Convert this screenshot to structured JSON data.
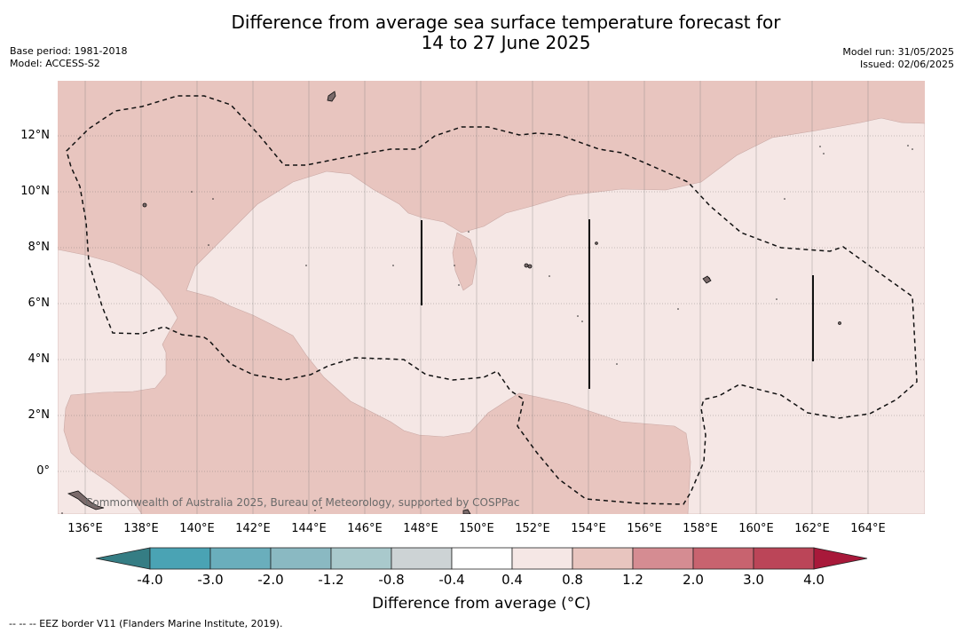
{
  "title_line1": "Difference from average sea surface temperature forecast for",
  "title_line2": "14 to 27 June 2025",
  "base_period": "Base period: 1981-2018",
  "model": "Model: ACCESS-S2",
  "model_run": "Model run: 31/05/2025",
  "issued": "Issued: 02/06/2025",
  "credit": "Commonwealth of Australia 2025, Bureau of Meteorology, supported by COSPPac",
  "footer": "--  --  -- EEZ border V11 (Flanders Marine Institute, 2019).",
  "x_ticks": [
    "136°E",
    "138°E",
    "140°E",
    "142°E",
    "144°E",
    "146°E",
    "148°E",
    "150°E",
    "152°E",
    "154°E",
    "156°E",
    "158°E",
    "160°E",
    "162°E",
    "164°E"
  ],
  "y_ticks": [
    "12°N",
    "10°N",
    "8°N",
    "6°N",
    "4°N",
    "2°N",
    "0°"
  ],
  "colorbar": {
    "title": "Difference from average (°C)",
    "labels": [
      "-4.0",
      "-3.0",
      "-2.0",
      "-1.2",
      "-0.8",
      "-0.4",
      "0.4",
      "0.8",
      "1.2",
      "2.0",
      "3.0",
      "4.0"
    ],
    "colors": [
      "#4aa3b4",
      "#6aaebc",
      "#8ab9c2",
      "#a9c9cc",
      "#cdd3d5",
      "#ffffff",
      "#f5e7e5",
      "#e8c5bf",
      "#d58c92",
      "#c8636f",
      "#bb4558"
    ],
    "under_color": "#357d84",
    "over_color": "#a8193a"
  },
  "legend_colors": {
    "band_0_4_0_8": "#f5e7e5",
    "band_0_8_1_2": "#e8c5bf",
    "land": "#7a6a6a"
  }
}
